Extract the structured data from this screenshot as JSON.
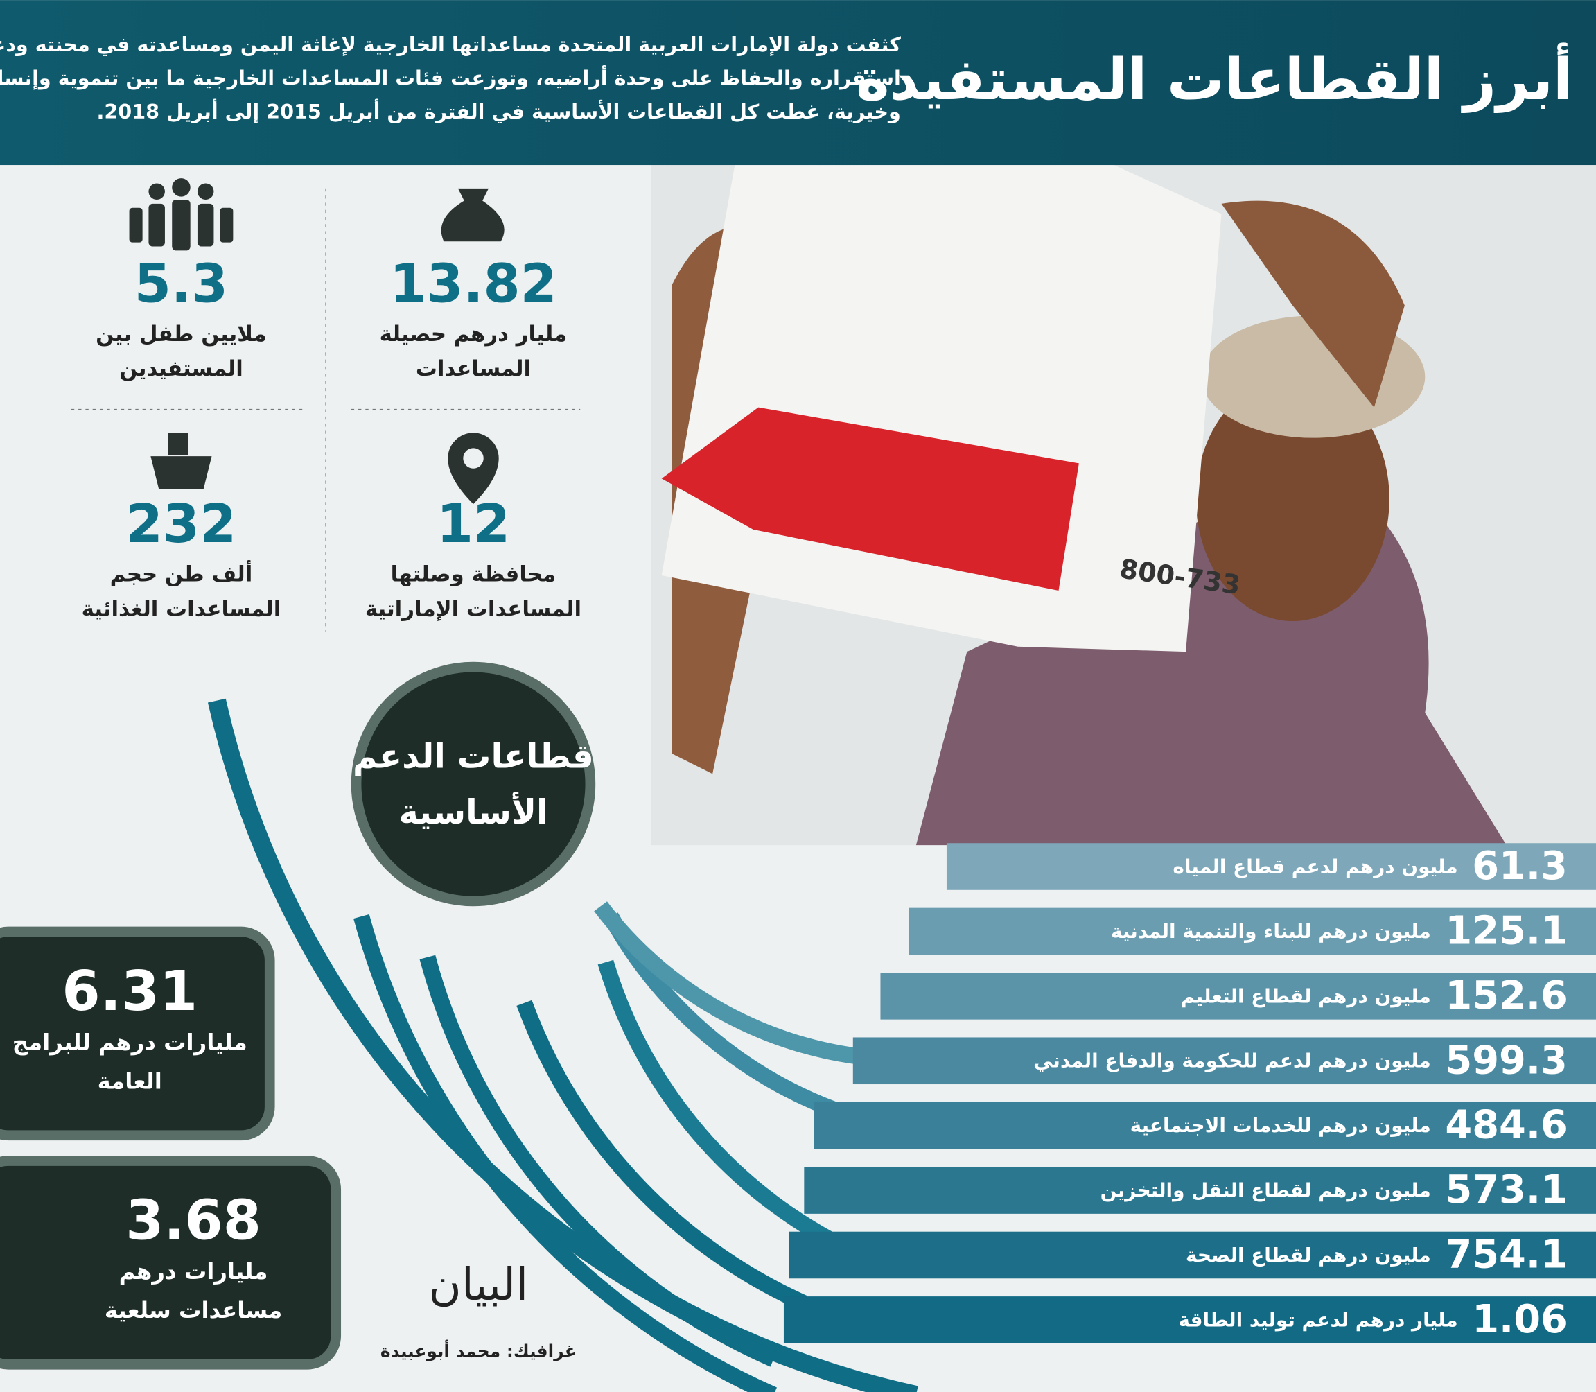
{
  "header": {
    "title": "أبرز القطاعات المستفيدة",
    "intro": [
      "كثفت دولة الإمارات العربية المتحدة مساعداتها الخارجية لإغاثة اليمن ومساعدته في محنته ودعم",
      "استقراره والحفاظ على وحدة أراضيه، وتوزعت فئات المساعدات الخارجية ما بين تنموية وإنسانية",
      "وخيرية، غطت كل القطاعات الأساسية في الفترة من أبريل 2015 إلى أبريل 2018."
    ]
  },
  "stats": [
    {
      "value": 13.82,
      "label": [
        "مليار درهم حصيلة",
        "المساعدات"
      ]
    },
    {
      "value": 5.3,
      "label": [
        "ملايين طفل بين",
        "المستفيدين"
      ]
    },
    {
      "value": 12,
      "label": [
        "محافظة وصلتها",
        "المساعدات الإماراتية"
      ]
    },
    {
      "value": 232,
      "label": [
        "ألف طن حجم",
        "المساعدات الغذائية"
      ]
    }
  ],
  "center_label": [
    "قطاعات الدعم",
    "الأساسية"
  ],
  "sectors": [
    {
      "value": 61.3,
      "label": "مليون درهم لدعم قطاع المياه"
    },
    {
      "value": 125.1,
      "label": "مليون درهم للبناء والتنمية المدنية"
    },
    {
      "value": 152.6,
      "label": "مليون درهم لقطاع التعليم"
    },
    {
      "value": 599.3,
      "label": "مليون درهم لدعم للحكومة والدفاع المدني"
    },
    {
      "value": 484.6,
      "label": "مليون درهم للخدمات الاجتماعية"
    },
    {
      "value": 573.1,
      "label": "مليون درهم لقطاع النقل والتخزين"
    },
    {
      "value": 754.1,
      "label": "مليون درهم لقطاع الصحة"
    },
    {
      "value": 1.06,
      "label": "مليار درهم لدعم توليد الطاقة"
    }
  ],
  "totals": [
    {
      "value": 6.31,
      "label": [
        "مليارات درهم للبرامج",
        "العامة"
      ]
    },
    {
      "value": 3.68,
      "label": [
        "مليارات درهم",
        "مساعدات سلعية"
      ]
    }
  ],
  "logo": "البيان",
  "credit": "غرافيك: محمد أبوعبيدة"
}
